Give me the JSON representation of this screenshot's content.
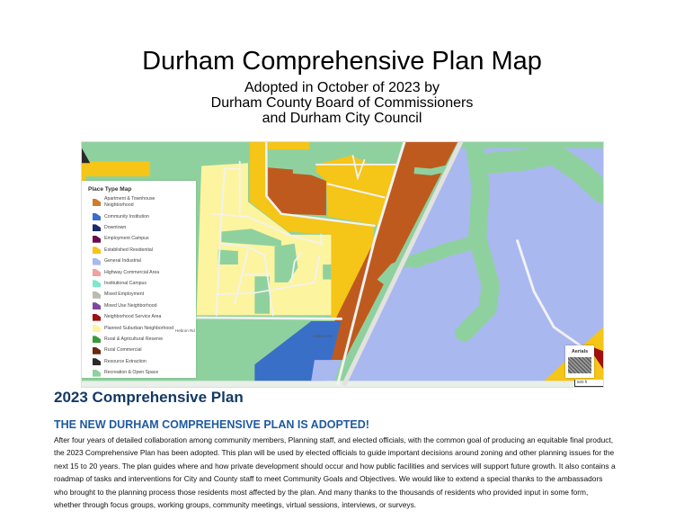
{
  "header": {
    "title": "Durham Comprehensive Plan Map",
    "subtitle_lines": [
      "Adopted in October of 2023 by",
      "Durham County Board of Commissioners",
      "and Durham City Council"
    ]
  },
  "map": {
    "legend": {
      "title": "Place Type Map",
      "items": [
        {
          "label": "Apartment & Townhouse Neighborhood",
          "color": "#d07a2a"
        },
        {
          "label": "Community Institution",
          "color": "#3a6fc8"
        },
        {
          "label": "Downtown",
          "color": "#1b2a6b"
        },
        {
          "label": "Employment Campus",
          "color": "#6a0a4a"
        },
        {
          "label": "Established Residential",
          "color": "#f5c518"
        },
        {
          "label": "General Industrial",
          "color": "#aab8f0"
        },
        {
          "label": "Highway Commercial Area",
          "color": "#f4a0a0"
        },
        {
          "label": "Institutional Campus",
          "color": "#7de8c8"
        },
        {
          "label": "Mixed Employment",
          "color": "#bbbbb0"
        },
        {
          "label": "Mixed Use Neighborhood",
          "color": "#7b4aa0"
        },
        {
          "label": "Neighborhood Service Area",
          "color": "#a01010"
        },
        {
          "label": "Planned Suburban Neighborhood",
          "color": "#fdf4a0"
        },
        {
          "label": "Rural & Agricultural Reserve",
          "color": "#3a9a3a"
        },
        {
          "label": "Rural Commercial",
          "color": "#6a2a10"
        },
        {
          "label": "Resource Extraction",
          "color": "#2a2a2a"
        },
        {
          "label": "Recreation & Open Space",
          "color": "#8fd19e"
        }
      ]
    },
    "road_labels": {
      "hebron_left": "Hebron Rd",
      "hebron_right": "Hebron Rd"
    },
    "aerials_label": "Aerials",
    "scale_label": "500 ft"
  },
  "article": {
    "heading": "2023 Comprehensive Plan",
    "subheading": "THE NEW DURHAM COMPREHENSIVE PLAN IS ADOPTED!",
    "body": "After four years of detailed collaboration among community members, Planning staff, and elected officials, with the common goal of producing an equitable final product, the 2023 Comprehensive Plan has been adopted. This plan will be used by elected officials to guide important decisions around zoning and other planning issues for the next 15 to 20 years. The plan guides where and how private development should occur and how public facilities and services will support future growth. It also contains a roadmap of tasks and interventions for City and County staff to meet Community Goals and Objectives. We would like to extend a special thanks to the ambassadors who brought to the planning process those residents most affected by the plan. And many thanks to the thousands of residents who provided input in some form, whether through focus groups, working groups, community meetings, virtual sessions, interviews, or surveys."
  }
}
